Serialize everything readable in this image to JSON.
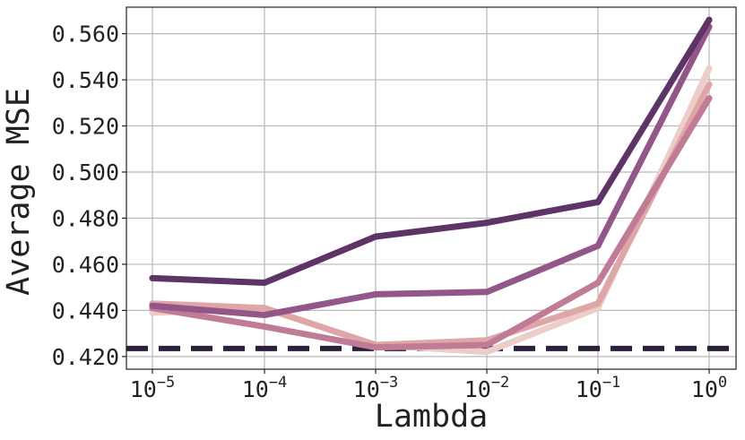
{
  "chart_data": {
    "type": "line",
    "xlabel": "Lambda",
    "ylabel": "Average MSE",
    "x_scale": "log",
    "x": [
      1e-05,
      0.0001,
      0.001,
      0.01,
      0.1,
      1
    ],
    "x_tick_labels": [
      {
        "base": "10",
        "exp": "−5"
      },
      {
        "base": "10",
        "exp": "−4"
      },
      {
        "base": "10",
        "exp": "−3"
      },
      {
        "base": "10",
        "exp": "−2"
      },
      {
        "base": "10",
        "exp": "−1"
      },
      {
        "base": "10",
        "exp": "0"
      }
    ],
    "yticks": [
      0.42,
      0.44,
      0.46,
      0.48,
      0.5,
      0.52,
      0.54,
      0.56
    ],
    "ytick_labels": [
      "0.420",
      "0.440",
      "0.460",
      "0.480",
      "0.500",
      "0.520",
      "0.540",
      "0.560"
    ],
    "ylim": [
      0.4145,
      0.5715
    ],
    "grid": true,
    "series": [
      {
        "color": "#eccdc8",
        "values": [
          0.439,
          0.441,
          0.425,
          0.422,
          0.441,
          0.545
        ]
      },
      {
        "color": "#dfa6a8",
        "values": [
          0.443,
          0.441,
          0.425,
          0.427,
          0.443,
          0.538
        ]
      },
      {
        "color": "#c07c97",
        "values": [
          0.441,
          0.433,
          0.424,
          0.425,
          0.452,
          0.532
        ]
      },
      {
        "color": "#935689",
        "values": [
          0.442,
          0.438,
          0.447,
          0.448,
          0.468,
          0.563
        ]
      },
      {
        "color": "#5d3465",
        "values": [
          0.454,
          0.452,
          0.472,
          0.478,
          0.487,
          0.566
        ]
      }
    ],
    "baseline": {
      "value": 0.4235,
      "style": "dashed",
      "color": "#2b1f3c"
    }
  }
}
